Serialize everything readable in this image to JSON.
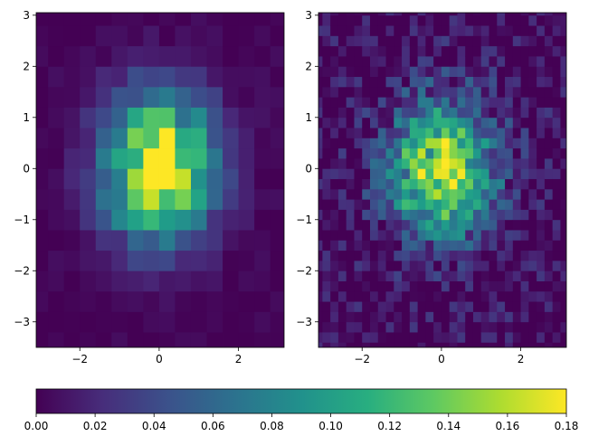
{
  "chart_data": [
    {
      "type": "heatmap",
      "title": "",
      "xlabel": "",
      "ylabel": "",
      "xlim": [
        -3.1,
        3.15
      ],
      "ylim": [
        -3.5,
        3.05
      ],
      "x_ticks": [
        -2,
        0,
        2
      ],
      "x_tick_labels": [
        "−2",
        "0",
        "2"
      ],
      "y_ticks": [
        -3,
        -2,
        -1,
        0,
        1,
        2,
        3
      ],
      "y_tick_labels": [
        "−3",
        "−2",
        "−1",
        "0",
        "1",
        "2",
        "3"
      ],
      "grid": false,
      "colormap": "viridis",
      "bin_size": 0.4,
      "sigma": 1.0,
      "peak_density": 0.18,
      "noise": 0.012,
      "seed": 11
    },
    {
      "type": "heatmap",
      "title": "",
      "xlabel": "",
      "ylabel": "",
      "xlim": [
        -3.1,
        3.15
      ],
      "ylim": [
        -3.5,
        3.05
      ],
      "x_ticks": [
        -2,
        0,
        2
      ],
      "x_tick_labels": [
        "−2",
        "0",
        "2"
      ],
      "y_ticks": [
        -3,
        -2,
        -1,
        0,
        1,
        2,
        3
      ],
      "y_tick_labels": [
        "−3",
        "−2",
        "−1",
        "0",
        "1",
        "2",
        "3"
      ],
      "grid": false,
      "colormap": "viridis",
      "bin_size": 0.2,
      "sigma": 0.95,
      "peak_density": 0.16,
      "noise": 0.06,
      "seed": 29
    }
  ],
  "colorbar": {
    "orientation": "horizontal",
    "colormap": "viridis",
    "vmin": 0.0,
    "vmax": 0.18,
    "ticks": [
      0.0,
      0.02,
      0.04,
      0.06,
      0.08,
      0.1,
      0.12,
      0.14,
      0.16,
      0.18
    ],
    "tick_labels": [
      "0.00",
      "0.02",
      "0.04",
      "0.06",
      "0.08",
      "0.10",
      "0.12",
      "0.14",
      "0.16",
      "0.18"
    ]
  }
}
